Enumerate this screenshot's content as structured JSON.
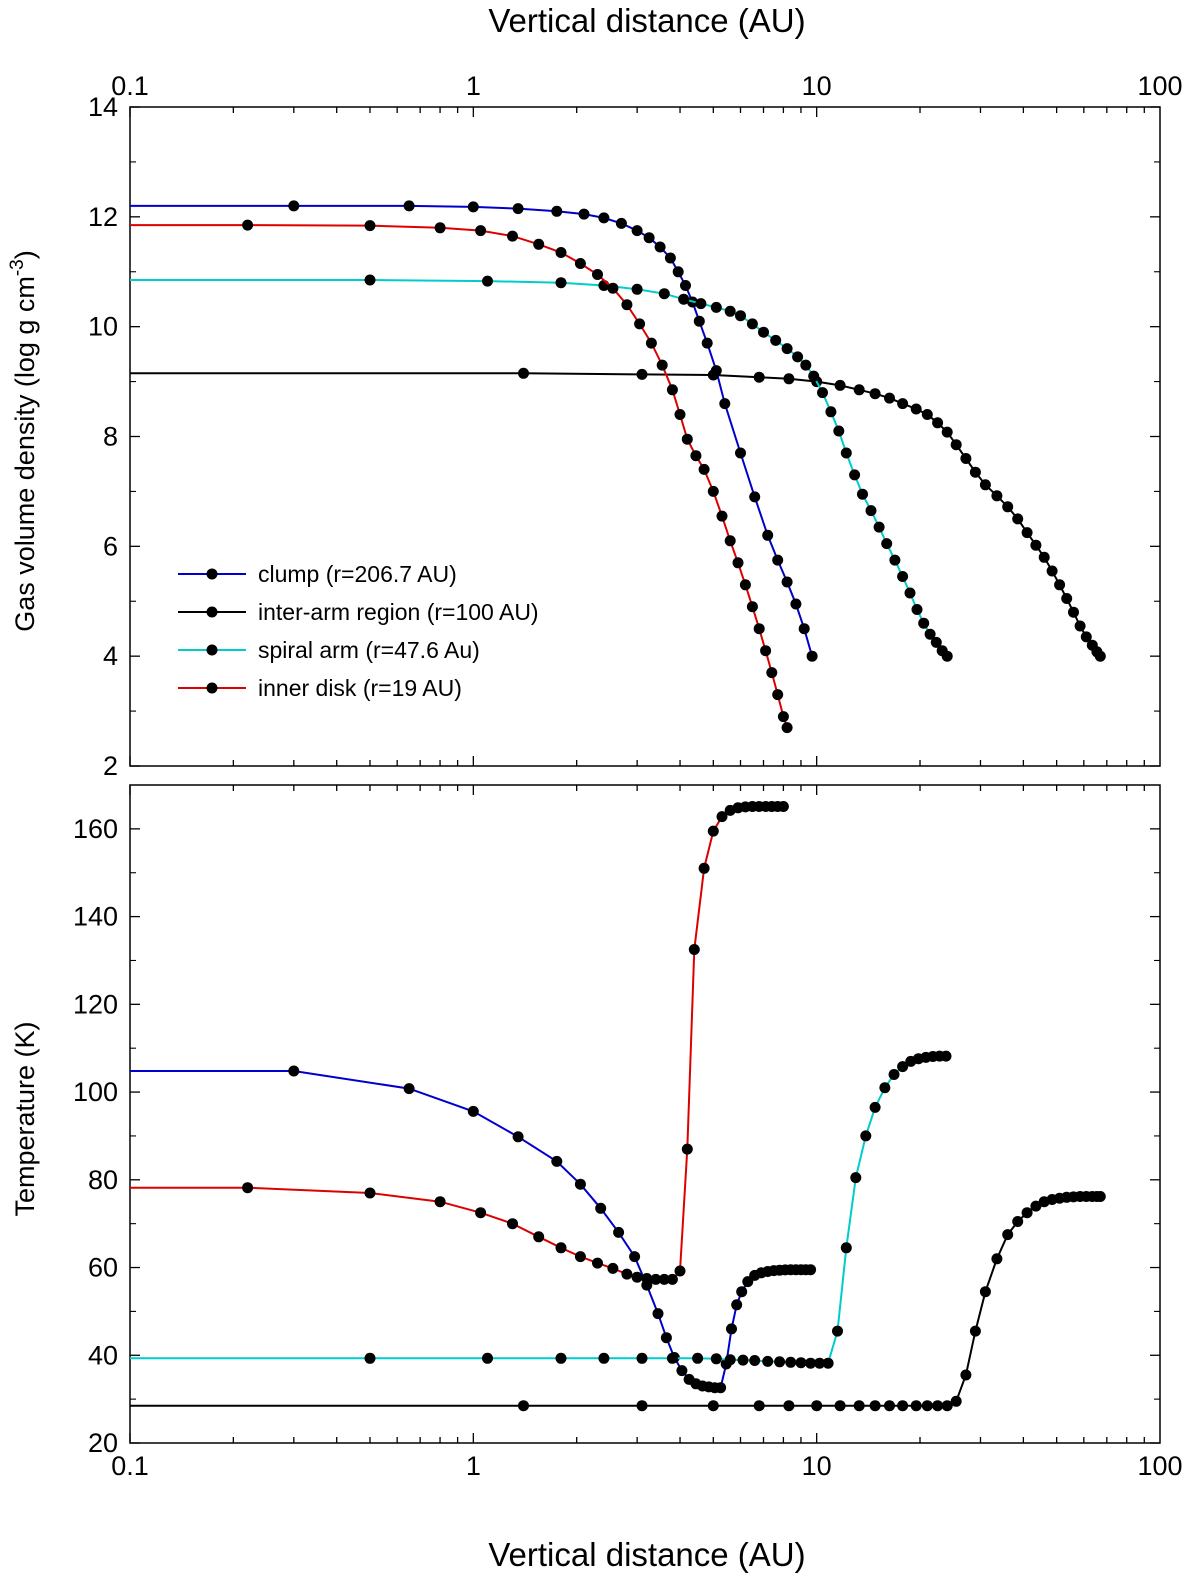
{
  "chart_data": [
    {
      "type": "line",
      "panel": "top",
      "xscale": "log",
      "xlim": [
        0.1,
        100
      ],
      "ylim": [
        2,
        14
      ],
      "xticks": [
        "0.1",
        "1",
        "10",
        "100"
      ],
      "yticks": [
        "2",
        "4",
        "6",
        "8",
        "10",
        "12",
        "14"
      ],
      "xlabel": "Vertical distance (AU)",
      "ylabel": "Gas volume density (log g cm",
      "ylabel_sup": "-3",
      "ylabel_end": ")",
      "legend_position": "lower-left",
      "series": [
        {
          "name": "clump (r=206.7 AU)",
          "color": "#0000cc",
          "x": [
            0.1,
            0.3,
            0.65,
            1.0,
            1.35,
            1.75,
            2.1,
            2.4,
            2.7,
            3.0,
            3.25,
            3.5,
            3.75,
            3.95,
            4.15,
            4.35,
            4.55,
            4.8,
            5.1,
            5.4,
            6.0,
            6.6,
            7.2,
            7.7,
            8.2,
            8.7,
            9.2,
            9.7
          ],
          "y": [
            12.2,
            12.2,
            12.2,
            12.18,
            12.15,
            12.1,
            12.05,
            11.98,
            11.88,
            11.75,
            11.62,
            11.45,
            11.25,
            11.0,
            10.75,
            10.45,
            10.1,
            9.7,
            9.2,
            8.6,
            7.7,
            6.9,
            6.2,
            5.75,
            5.35,
            4.95,
            4.5,
            4.0
          ],
          "dot_count": 26
        },
        {
          "name": "inter-arm region (r=100 AU)",
          "color": "#000000",
          "x": [
            0.1,
            1.4,
            3.1,
            5.0,
            6.8,
            8.3,
            10.0,
            11.7,
            13.3,
            14.8,
            16.3,
            17.8,
            19.5,
            21.0,
            22.5,
            24.0,
            25.5,
            27.2,
            29.0,
            31.0,
            33.5,
            36.0,
            38.5,
            41.0,
            43.5,
            46.0,
            48.5,
            51.0,
            53.5,
            56.0,
            58.5,
            61.0,
            63.5,
            65.5,
            67.0
          ],
          "y": [
            9.15,
            9.15,
            9.13,
            9.12,
            9.08,
            9.05,
            9.0,
            8.93,
            8.85,
            8.78,
            8.7,
            8.6,
            8.5,
            8.4,
            8.25,
            8.08,
            7.85,
            7.6,
            7.35,
            7.12,
            6.92,
            6.72,
            6.5,
            6.25,
            6.02,
            5.8,
            5.55,
            5.3,
            5.05,
            4.8,
            4.55,
            4.35,
            4.2,
            4.08,
            4.0
          ],
          "dot_count": 34
        },
        {
          "name": "spiral arm (r=47.6 Au)",
          "color": "#00cccc",
          "x": [
            0.1,
            0.5,
            1.1,
            1.8,
            2.4,
            3.0,
            3.6,
            4.1,
            4.6,
            5.1,
            5.6,
            6.0,
            6.5,
            7.0,
            7.6,
            8.2,
            8.8,
            9.3,
            9.8,
            10.4,
            11.0,
            11.6,
            12.2,
            12.9,
            13.6,
            14.4,
            15.2,
            16.0,
            16.9,
            17.8,
            18.7,
            19.6,
            20.5,
            21.4,
            22.3,
            23.2,
            24.0
          ],
          "y": [
            10.85,
            10.85,
            10.83,
            10.8,
            10.75,
            10.68,
            10.6,
            10.5,
            10.42,
            10.35,
            10.28,
            10.2,
            10.05,
            9.9,
            9.75,
            9.6,
            9.45,
            9.3,
            9.1,
            8.8,
            8.45,
            8.1,
            7.7,
            7.3,
            6.95,
            6.65,
            6.35,
            6.05,
            5.75,
            5.45,
            5.15,
            4.85,
            4.6,
            4.4,
            4.25,
            4.1,
            4.0
          ],
          "dot_count": 37
        },
        {
          "name": "inner disk (r=19 AU)",
          "color": "#dd0000",
          "x": [
            0.1,
            0.22,
            0.5,
            0.8,
            1.05,
            1.3,
            1.55,
            1.8,
            2.05,
            2.3,
            2.55,
            2.8,
            3.05,
            3.3,
            3.55,
            3.8,
            4.0,
            4.2,
            4.45,
            4.7,
            5.0,
            5.3,
            5.6,
            5.9,
            6.2,
            6.5,
            6.8,
            7.1,
            7.4,
            7.7,
            8.0,
            8.2
          ],
          "y": [
            11.85,
            11.85,
            11.84,
            11.8,
            11.75,
            11.65,
            11.5,
            11.35,
            11.15,
            10.95,
            10.7,
            10.4,
            10.05,
            9.7,
            9.3,
            8.85,
            8.4,
            7.95,
            7.65,
            7.4,
            7.0,
            6.55,
            6.1,
            5.7,
            5.3,
            4.9,
            4.5,
            4.1,
            3.7,
            3.3,
            2.9,
            2.7
          ],
          "dot_count": 31
        }
      ]
    },
    {
      "type": "line",
      "panel": "bottom",
      "xscale": "log",
      "xlim": [
        0.1,
        100
      ],
      "ylim": [
        20,
        170
      ],
      "xticks": [
        "0.1",
        "1",
        "10",
        "100"
      ],
      "yticks": [
        "20",
        "40",
        "60",
        "80",
        "100",
        "120",
        "140",
        "160"
      ],
      "xlabel": "Vertical distance (AU)",
      "ylabel": "Temperature (K)",
      "series": [
        {
          "name": "clump (r=206.7 AU)",
          "color": "#0000cc",
          "x": [
            0.1,
            0.3,
            0.65,
            1.0,
            1.35,
            1.75,
            2.05,
            2.35,
            2.65,
            2.95,
            3.2,
            3.45,
            3.65,
            3.85,
            4.05,
            4.25,
            4.45,
            4.65,
            4.85,
            5.05,
            5.25,
            5.45,
            5.65,
            5.85,
            6.05,
            6.3,
            6.6,
            6.9,
            7.2,
            7.5,
            7.8,
            8.1,
            8.4,
            8.7,
            9.0,
            9.3,
            9.6
          ],
          "y": [
            104.8,
            104.8,
            100.8,
            95.6,
            89.8,
            84.2,
            79.0,
            73.5,
            68.0,
            62.5,
            56.0,
            49.5,
            44.0,
            39.5,
            36.5,
            34.5,
            33.5,
            33.0,
            32.8,
            32.6,
            32.6,
            38.0,
            46.0,
            51.5,
            54.5,
            56.8,
            58.2,
            58.8,
            59.1,
            59.3,
            59.4,
            59.45,
            59.5,
            59.5,
            59.5,
            59.5,
            59.5
          ],
          "dot_count": 33
        },
        {
          "name": "inter-arm region (r=100 AU)",
          "color": "#000000",
          "x": [
            0.1,
            1.4,
            3.1,
            5.0,
            6.8,
            8.3,
            10.0,
            11.7,
            13.3,
            14.8,
            16.3,
            17.8,
            19.5,
            21.0,
            22.5,
            24.0,
            25.5,
            27.2,
            29.0,
            31.0,
            33.5,
            36.0,
            38.5,
            41.0,
            43.5,
            46.0,
            48.5,
            51.0,
            53.5,
            56.0,
            58.5,
            61.0,
            63.5,
            65.5,
            67.0
          ],
          "y": [
            28.5,
            28.5,
            28.5,
            28.5,
            28.5,
            28.5,
            28.5,
            28.5,
            28.5,
            28.5,
            28.5,
            28.5,
            28.5,
            28.5,
            28.5,
            28.5,
            29.5,
            35.5,
            45.5,
            54.5,
            62.0,
            67.5,
            70.5,
            72.5,
            74.0,
            75.0,
            75.5,
            75.8,
            76.0,
            76.1,
            76.2,
            76.2,
            76.2,
            76.2,
            76.2
          ],
          "dot_count": 34
        },
        {
          "name": "spiral arm (r=47.6 Au)",
          "color": "#00cccc",
          "x": [
            0.1,
            0.5,
            1.1,
            1.8,
            2.4,
            3.1,
            3.8,
            4.5,
            5.1,
            5.6,
            6.1,
            6.6,
            7.2,
            7.8,
            8.4,
            9.0,
            9.6,
            10.2,
            10.8,
            11.5,
            12.2,
            13.0,
            13.9,
            14.8,
            15.8,
            16.8,
            17.8,
            18.8,
            19.8,
            20.8,
            21.8,
            22.8,
            23.8
          ],
          "y": [
            39.3,
            39.3,
            39.3,
            39.3,
            39.3,
            39.3,
            39.3,
            39.3,
            39.2,
            39.0,
            38.9,
            38.8,
            38.6,
            38.5,
            38.4,
            38.3,
            38.2,
            38.2,
            38.2,
            45.5,
            64.5,
            80.5,
            90.0,
            96.5,
            101.0,
            104.0,
            105.8,
            107.0,
            107.6,
            107.9,
            108.1,
            108.2,
            108.2
          ],
          "dot_count": 32
        },
        {
          "name": "inner disk (r=19 AU)",
          "color": "#dd0000",
          "x": [
            0.1,
            0.22,
            0.5,
            0.8,
            1.05,
            1.3,
            1.55,
            1.8,
            2.05,
            2.3,
            2.55,
            2.8,
            3.0,
            3.2,
            3.4,
            3.6,
            3.8,
            4.0,
            4.2,
            4.4,
            4.7,
            5.0,
            5.3,
            5.6,
            5.9,
            6.2,
            6.5,
            6.8,
            7.1,
            7.4,
            7.7,
            8.0
          ],
          "y": [
            78.2,
            78.2,
            77.0,
            75.0,
            72.5,
            70.0,
            67.0,
            64.5,
            62.5,
            61.0,
            59.8,
            58.5,
            57.8,
            57.5,
            57.3,
            57.3,
            57.3,
            59.2,
            87.0,
            132.5,
            151.0,
            159.5,
            162.8,
            164.2,
            164.8,
            165.0,
            165.1,
            165.1,
            165.1,
            165.1,
            165.1,
            165.1
          ],
          "dot_count": 31
        }
      ]
    }
  ]
}
